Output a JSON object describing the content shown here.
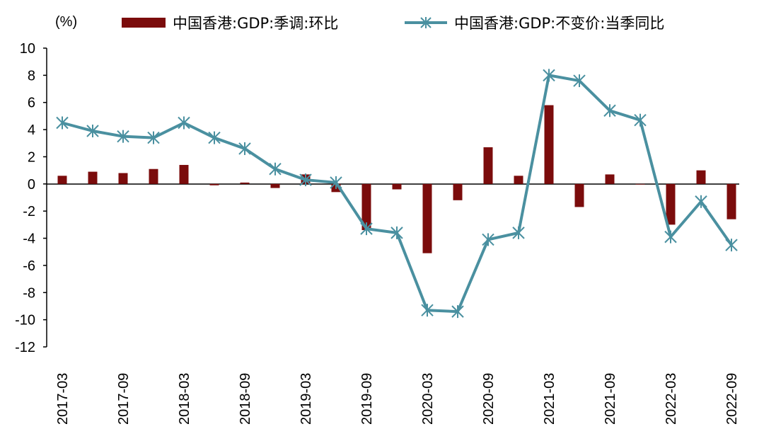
{
  "chart_data": {
    "type": "bar+line",
    "y_unit_label": "(%)",
    "ylim": [
      -12,
      10
    ],
    "y_ticks": [
      10,
      8,
      6,
      4,
      2,
      0,
      -2,
      -4,
      -6,
      -8,
      -10,
      -12
    ],
    "categories": [
      "2017-03",
      "2017-06",
      "2017-09",
      "2017-12",
      "2018-03",
      "2018-06",
      "2018-09",
      "2018-12",
      "2019-03",
      "2019-06",
      "2019-09",
      "2019-12",
      "2020-03",
      "2020-06",
      "2020-09",
      "2020-12",
      "2021-03",
      "2021-06",
      "2021-09",
      "2021-12",
      "2022-03",
      "2022-06",
      "2022-09"
    ],
    "x_tick_labels": [
      "2017-03",
      "2017-09",
      "2018-03",
      "2018-09",
      "2019-03",
      "2019-09",
      "2020-03",
      "2020-09",
      "2021-03",
      "2021-09",
      "2022-03",
      "2022-09"
    ],
    "grid": false,
    "legend_position": "top",
    "series": [
      {
        "name": "中国香港:GDP:季调:环比",
        "type": "bar",
        "color": "#7b0c0c",
        "values": [
          0.6,
          0.9,
          0.8,
          1.1,
          1.4,
          -0.1,
          0.1,
          -0.3,
          0.7,
          -0.6,
          -3.4,
          -0.4,
          -5.1,
          -1.2,
          2.7,
          0.6,
          5.8,
          -1.7,
          0.7,
          0.0,
          -3.0,
          1.0,
          -2.6
        ]
      },
      {
        "name": "中国香港:GDP:不变价:当季同比",
        "type": "line",
        "color": "#4a90a0",
        "values": [
          4.5,
          3.9,
          3.5,
          3.4,
          4.5,
          3.4,
          2.6,
          1.1,
          0.3,
          0.1,
          -3.3,
          -3.6,
          -9.3,
          -9.4,
          -4.1,
          -3.6,
          8.0,
          7.6,
          5.4,
          4.7,
          -3.9,
          -1.3,
          -4.5
        ]
      }
    ]
  }
}
